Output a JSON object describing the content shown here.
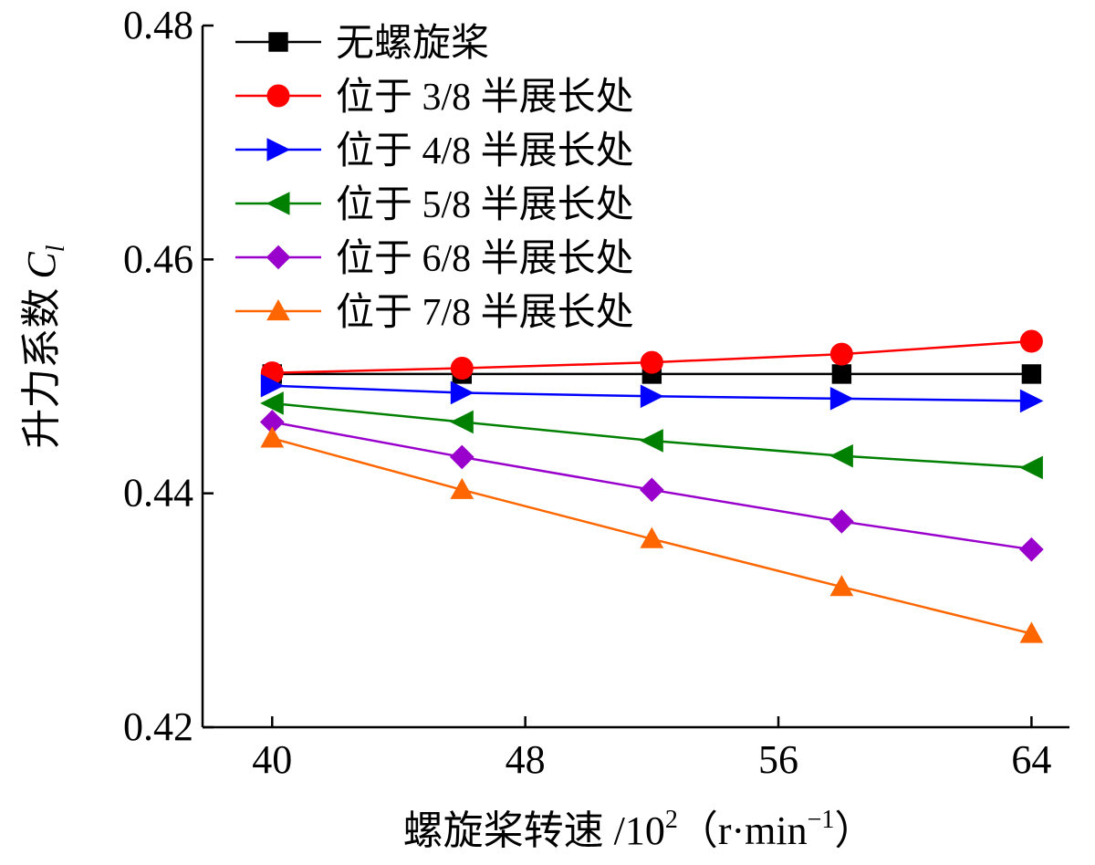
{
  "chart_data": {
    "type": "line",
    "xlabel_main": "螺旋桨转速 /10",
    "xlabel_exp": "2",
    "xlabel_unit_open": "（r·min",
    "xlabel_unit_exp": "−1",
    "xlabel_unit_close": "）",
    "ylabel_main": "升力系数",
    "ylabel_symbol": "C",
    "ylabel_sub": "l",
    "xlim": [
      37.8,
      65.2
    ],
    "ylim": [
      0.42,
      0.48
    ],
    "xticks": [
      {
        "value": 40,
        "label": "40"
      },
      {
        "value": 48,
        "label": "48"
      },
      {
        "value": 56,
        "label": "56"
      },
      {
        "value": 64,
        "label": "64"
      }
    ],
    "yticks": [
      {
        "value": 0.42,
        "label": "0.42"
      },
      {
        "value": 0.44,
        "label": "0.44"
      },
      {
        "value": 0.46,
        "label": "0.46"
      },
      {
        "value": 0.48,
        "label": "0.48"
      }
    ],
    "x": [
      40,
      46,
      52,
      58,
      64
    ],
    "legend_position": "top-left",
    "series": [
      {
        "name": "无螺旋桨",
        "color": "#000000",
        "marker": "square",
        "values": [
          0.4502,
          0.4502,
          0.4502,
          0.4502,
          0.4502
        ]
      },
      {
        "name": "位于 3/8 半展长处",
        "color": "#ff0000",
        "marker": "circle",
        "values": [
          0.4503,
          0.4507,
          0.4512,
          0.4519,
          0.453
        ]
      },
      {
        "name": "位于 4/8 半展长处",
        "color": "#0000ff",
        "marker": "triangle-right",
        "values": [
          0.4492,
          0.4486,
          0.4483,
          0.4481,
          0.4479
        ]
      },
      {
        "name": "位于 5/8 半展长处",
        "color": "#008000",
        "marker": "triangle-left",
        "values": [
          0.4477,
          0.4461,
          0.4445,
          0.4432,
          0.4422
        ]
      },
      {
        "name": "位于 6/8 半展长处",
        "color": "#9900cc",
        "marker": "diamond",
        "values": [
          0.4461,
          0.4431,
          0.4403,
          0.4376,
          0.4352
        ]
      },
      {
        "name": "位于 7/8 半展长处",
        "color": "#ff6600",
        "marker": "triangle-up",
        "values": [
          0.4447,
          0.4403,
          0.4361,
          0.432,
          0.428
        ]
      }
    ]
  }
}
